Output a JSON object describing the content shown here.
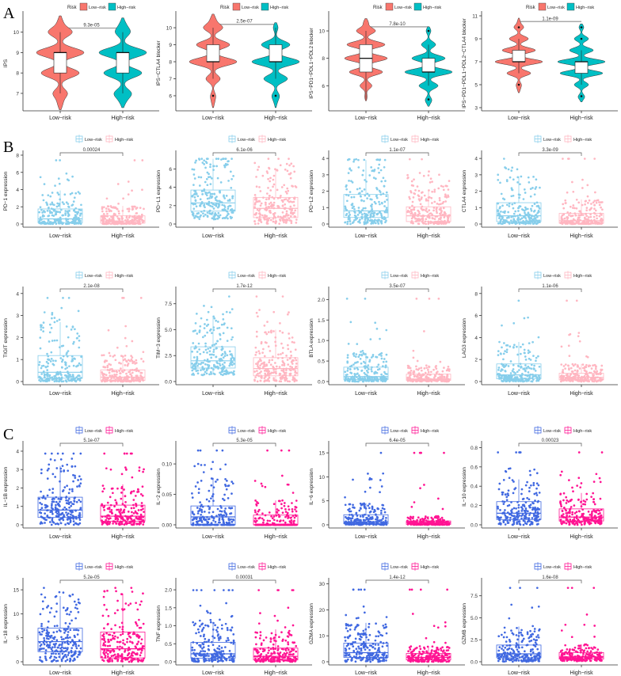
{
  "panel_letters": [
    "A",
    "B",
    "C"
  ],
  "legend": {
    "title": "Risk",
    "low": "Low−risk",
    "high": "High−risk"
  },
  "categories": [
    "Low−risk",
    "High−risk"
  ],
  "colors": {
    "A": {
      "low": "#F8766D",
      "high": "#00BFC4"
    },
    "B": {
      "low": "#87CEEB",
      "high": "#FFB6C1"
    },
    "C": {
      "low": "#4169E1",
      "high": "#FF1493"
    }
  },
  "chart_data": [
    {
      "panel": "A",
      "type": "violin",
      "ylabel": "IPS",
      "yticks": [
        7,
        8,
        9,
        10
      ],
      "ylim": [
        6.3,
        10.8
      ],
      "pvalue": "9.3e-05",
      "bracket_y": 10.2,
      "low": {
        "q1": 8,
        "median": 9,
        "q3": 9,
        "min": 7,
        "max": 10,
        "density": {
          "6.5": 0.1,
          "7": 0.3,
          "8": 0.8,
          "9": 1,
          "10": 0.5,
          "10.5": 0.1
        }
      },
      "high": {
        "q1": 8,
        "median": 9,
        "q3": 9,
        "min": 7,
        "max": 10,
        "density": {
          "6.6": 0.1,
          "7": 0.35,
          "8": 0.8,
          "9": 1,
          "10": 0.3,
          "10.4": 0.1
        }
      }
    },
    {
      "panel": "A",
      "type": "violin",
      "ylabel": "IPS−CTLA4 blocker",
      "yticks": [
        6,
        7,
        8,
        9,
        10
      ],
      "ylim": [
        5.3,
        10.7
      ],
      "pvalue": "2.5e-07",
      "bracket_y": 10.2,
      "low": {
        "q1": 8,
        "median": 8,
        "q3": 9,
        "min": 7,
        "max": 10,
        "outliers": [
          6
        ],
        "density": {
          "5.6": 0.05,
          "6": 0.1,
          "7": 0.3,
          "8": 1,
          "9": 0.7,
          "10": 0.4,
          "10.5": 0.1
        }
      },
      "high": {
        "q1": 8,
        "median": 8,
        "q3": 9,
        "min": 7,
        "max": 10,
        "outliers": [
          6
        ],
        "density": {
          "5.6": 0.05,
          "6": 0.15,
          "7": 0.5,
          "8": 1,
          "9": 0.6,
          "10": 0.1
        }
      }
    },
    {
      "panel": "A",
      "type": "violin",
      "ylabel": "IPS−PD1−PDL1−PDL2 blocker",
      "yticks": [
        6,
        8,
        10
      ],
      "ylim": [
        4.4,
        11.1
      ],
      "pvalue": "7.8e-10",
      "bracket_y": 10.3,
      "low": {
        "q1": 7,
        "median": 8,
        "q3": 9,
        "min": 5,
        "max": 10,
        "density": {
          "5.2": 0.05,
          "6": 0.25,
          "7": 0.7,
          "8": 0.9,
          "9": 0.8,
          "10": 0.4,
          "10.6": 0.1
        }
      },
      "high": {
        "q1": 7,
        "median": 7,
        "q3": 8,
        "min": 6,
        "max": 9,
        "outliers": [
          5,
          10
        ],
        "density": {
          "4.8": 0.05,
          "5": 0.1,
          "6": 0.4,
          "7": 1,
          "8": 0.7,
          "9": 0.3,
          "10": 0.1
        }
      }
    },
    {
      "panel": "A",
      "type": "violin",
      "ylabel": "IPS−PD1−PDL1−PDL2−CTLA4 blocker",
      "yticks": [
        3,
        5,
        7,
        9,
        11
      ],
      "ylim": [
        3,
        11
      ],
      "pvalue": "1.1e-09",
      "bracket_y": 10.5,
      "low": {
        "q1": 7,
        "median": 7,
        "q3": 8,
        "min": 6,
        "max": 9,
        "outliers": [
          5,
          10
        ],
        "density": {
          "4.6": 0.05,
          "5": 0.1,
          "6": 0.5,
          "7": 1,
          "8": 0.7,
          "9": 0.4,
          "10": 0.2,
          "10.5": 0.05
        }
      },
      "high": {
        "q1": 6,
        "median": 7,
        "q3": 7,
        "min": 5,
        "max": 8,
        "outliers": [
          4,
          9,
          10
        ],
        "density": {
          "3.8": 0.05,
          "4": 0.1,
          "5": 0.3,
          "6": 0.9,
          "7": 1,
          "8": 0.5,
          "9": 0.3,
          "10": 0.1
        }
      }
    },
    {
      "panel": "B",
      "type": "box",
      "ylabel": "PD−1 expression",
      "yticks": [
        0,
        2,
        4,
        6,
        8
      ],
      "ylim": [
        0,
        8
      ],
      "pvalue": "0.00024",
      "low": {
        "q1": 0.15,
        "median": 0.6,
        "q3": 1.75,
        "max": 3.9,
        "cap": 7.4
      },
      "high": {
        "q1": 0.1,
        "median": 0.35,
        "q3": 0.95,
        "max": 2.1,
        "cap": 7.4
      }
    },
    {
      "panel": "B",
      "type": "box",
      "ylabel": "PD−L1 expression",
      "yticks": [
        0,
        2,
        4,
        6
      ],
      "ylim": [
        0,
        7.5
      ],
      "pvalue": "6.1e-06",
      "low": {
        "q1": 1.4,
        "median": 2.3,
        "q3": 3.7,
        "max": 7.1,
        "cap": 7.1
      },
      "high": {
        "q1": 0.7,
        "median": 1.7,
        "q3": 2.9,
        "max": 6.0,
        "cap": 7.1
      }
    },
    {
      "panel": "B",
      "type": "box",
      "ylabel": "PD−L2 expression",
      "yticks": [
        0,
        1,
        2,
        3,
        4
      ],
      "ylim": [
        0,
        4.2
      ],
      "pvalue": "1.1e-07",
      "low": {
        "q1": 0.4,
        "median": 0.8,
        "q3": 1.8,
        "max": 3.9,
        "cap": 3.95
      },
      "high": {
        "q1": 0.15,
        "median": 0.5,
        "q3": 1.05,
        "max": 2.1,
        "cap": 3.95
      }
    },
    {
      "panel": "B",
      "type": "box",
      "ylabel": "CTLA4 expression",
      "yticks": [
        0,
        1,
        2,
        3,
        4
      ],
      "ylim": [
        0,
        4.2
      ],
      "pvalue": "3.3e-09",
      "low": {
        "q1": 0.15,
        "median": 0.5,
        "q3": 1.3,
        "max": 2.9,
        "cap": 3.98
      },
      "high": {
        "q1": 0.05,
        "median": 0.2,
        "q3": 0.65,
        "max": 1.5,
        "cap": 3.98
      }
    },
    {
      "panel": "B",
      "type": "box",
      "ylabel": "TIGIT expression",
      "yticks": [
        0,
        1,
        2,
        3,
        4
      ],
      "ylim": [
        0,
        4.1
      ],
      "pvalue": "2.1e-08",
      "low": {
        "q1": 0.15,
        "median": 0.42,
        "q3": 1.18,
        "max": 2.7,
        "cap": 3.8
      },
      "high": {
        "q1": 0.05,
        "median": 0.2,
        "q3": 0.53,
        "max": 1.2,
        "cap": 3.8
      }
    },
    {
      "panel": "B",
      "type": "box",
      "ylabel": "TIM−3 expression",
      "yticks": [
        0,
        2.5,
        5,
        7.5
      ],
      "ytick_labels": [
        "0.0",
        "2.5",
        "5.0",
        "7.5"
      ],
      "ylim": [
        0,
        8.7
      ],
      "pvalue": "1.7e-12",
      "low": {
        "q1": 1.3,
        "median": 2.0,
        "q3": 3.35,
        "max": 6.2,
        "cap": 8.2
      },
      "high": {
        "q1": 0.55,
        "median": 1.25,
        "q3": 2.3,
        "max": 5.0,
        "cap": 8.2
      }
    },
    {
      "panel": "B",
      "type": "box",
      "ylabel": "BTLA expression",
      "yticks": [
        0,
        0.5,
        1,
        1.5,
        2
      ],
      "ytick_labels": [
        "0.0",
        "0.5",
        "1.0",
        "1.5",
        "2.0"
      ],
      "ylim": [
        0,
        2.2
      ],
      "pvalue": "3.5e-07",
      "low": {
        "q1": 0.05,
        "median": 0.12,
        "q3": 0.35,
        "max": 0.7,
        "cap": 2.02
      },
      "high": {
        "q1": 0.03,
        "median": 0.06,
        "q3": 0.18,
        "max": 0.4,
        "cap": 2.02
      }
    },
    {
      "panel": "B",
      "type": "box",
      "ylabel": "LAG3 expression",
      "yticks": [
        0,
        2,
        4,
        6,
        8
      ],
      "ylim": [
        0,
        8.2
      ],
      "pvalue": "1.1e-06",
      "low": {
        "q1": 0.25,
        "median": 0.6,
        "q3": 1.6,
        "max": 3.6,
        "cap": 7.35
      },
      "high": {
        "q1": 0.15,
        "median": 0.38,
        "q3": 0.75,
        "max": 1.6,
        "cap": 7.35
      }
    },
    {
      "panel": "C",
      "type": "box",
      "ylabel": "IL−1B expression",
      "yticks": [
        0,
        1,
        2,
        3,
        4
      ],
      "ylim": [
        0,
        4.3
      ],
      "pvalue": "5.1e-07",
      "low": {
        "q1": 0.4,
        "median": 0.8,
        "q3": 1.5,
        "max": 3.2,
        "cap": 3.87
      },
      "high": {
        "q1": 0.2,
        "median": 0.47,
        "q3": 1.07,
        "max": 2.2,
        "cap": 3.87
      }
    },
    {
      "panel": "C",
      "type": "box",
      "ylabel": "IL−2 expression",
      "yticks": [
        0,
        0.05,
        0.1
      ],
      "ytick_labels": [
        "0.00",
        "0.05",
        "0.10"
      ],
      "ylim": [
        0,
        0.13
      ],
      "pvalue": "5.3e-05",
      "low": {
        "q1": 0,
        "median": 0.013,
        "q3": 0.031,
        "max": 0.077,
        "cap": 0.122
      },
      "high": {
        "q1": 0,
        "median": 0,
        "q3": 0.016,
        "max": 0.04,
        "cap": 0.122
      }
    },
    {
      "panel": "C",
      "type": "box",
      "ylabel": "IL−6 expression",
      "yticks": [
        0,
        5,
        10,
        15
      ],
      "ylim": [
        0,
        16.5
      ],
      "pvalue": "6.4e-05",
      "low": {
        "q1": 0.2,
        "median": 0.6,
        "q3": 2.1,
        "max": 4.5,
        "cap": 15
      },
      "high": {
        "q1": 0.1,
        "median": 0.45,
        "q3": 0.8,
        "max": 1.8,
        "cap": 15
      }
    },
    {
      "panel": "C",
      "type": "box",
      "ylabel": "IL−10 expression",
      "yticks": [
        0,
        0.2,
        0.4,
        0.6,
        0.8
      ],
      "ytick_labels": [
        "0.0",
        "0.2",
        "0.4",
        "0.6",
        "0.8"
      ],
      "ylim": [
        0,
        0.82
      ],
      "pvalue": "0.00023",
      "low": {
        "q1": 0.055,
        "median": 0.12,
        "q3": 0.24,
        "max": 0.47,
        "cap": 0.75
      },
      "high": {
        "q1": 0.04,
        "median": 0.08,
        "q3": 0.165,
        "max": 0.33,
        "cap": 0.75
      }
    },
    {
      "panel": "C",
      "type": "box",
      "ylabel": "IL−18 expression",
      "yticks": [
        0,
        5,
        10,
        15
      ],
      "ylim": [
        0,
        16.5
      ],
      "pvalue": "5.2e-05",
      "low": {
        "q1": 2.1,
        "median": 4.2,
        "q3": 7.0,
        "max": 13.7,
        "cap": 15.4
      },
      "high": {
        "q1": 0.8,
        "median": 2.7,
        "q3": 6.2,
        "max": 14,
        "cap": 15.4
      }
    },
    {
      "panel": "C",
      "type": "box",
      "ylabel": "TNF expression",
      "yticks": [
        0,
        0.5,
        1,
        1.5,
        2
      ],
      "ytick_labels": [
        "0.0",
        "0.5",
        "1.0",
        "1.5",
        "2.0"
      ],
      "ylim": [
        0,
        2.2
      ],
      "pvalue": "0.00031",
      "low": {
        "q1": 0.1,
        "median": 0.22,
        "q3": 0.54,
        "max": 1.1,
        "cap": 1.99
      },
      "high": {
        "q1": 0.05,
        "median": 0.15,
        "q3": 0.38,
        "max": 0.9,
        "cap": 1.99
      }
    },
    {
      "panel": "C",
      "type": "box",
      "ylabel": "GZMA expression",
      "yticks": [
        0,
        10,
        20,
        30
      ],
      "ylim": [
        0,
        30.5
      ],
      "pvalue": "1.4e-12",
      "low": {
        "q1": 1.7,
        "median": 3.5,
        "q3": 7.2,
        "max": 15,
        "cap": 27.8
      },
      "high": {
        "q1": 0.7,
        "median": 1.7,
        "q3": 3.2,
        "max": 6,
        "cap": 27.8
      }
    },
    {
      "panel": "C",
      "type": "box",
      "ylabel": "GZMB expression",
      "yticks": [
        0,
        2.5,
        5,
        7.5
      ],
      "ytick_labels": [
        "0.0",
        "2.5",
        "5.0",
        "7.5"
      ],
      "ylim": [
        0,
        9
      ],
      "pvalue": "1.6e-08",
      "low": {
        "q1": 0.45,
        "median": 0.9,
        "q3": 1.9,
        "max": 4,
        "cap": 8.4
      },
      "high": {
        "q1": 0.3,
        "median": 0.55,
        "q3": 1.05,
        "max": 2,
        "cap": 8.4
      }
    }
  ]
}
